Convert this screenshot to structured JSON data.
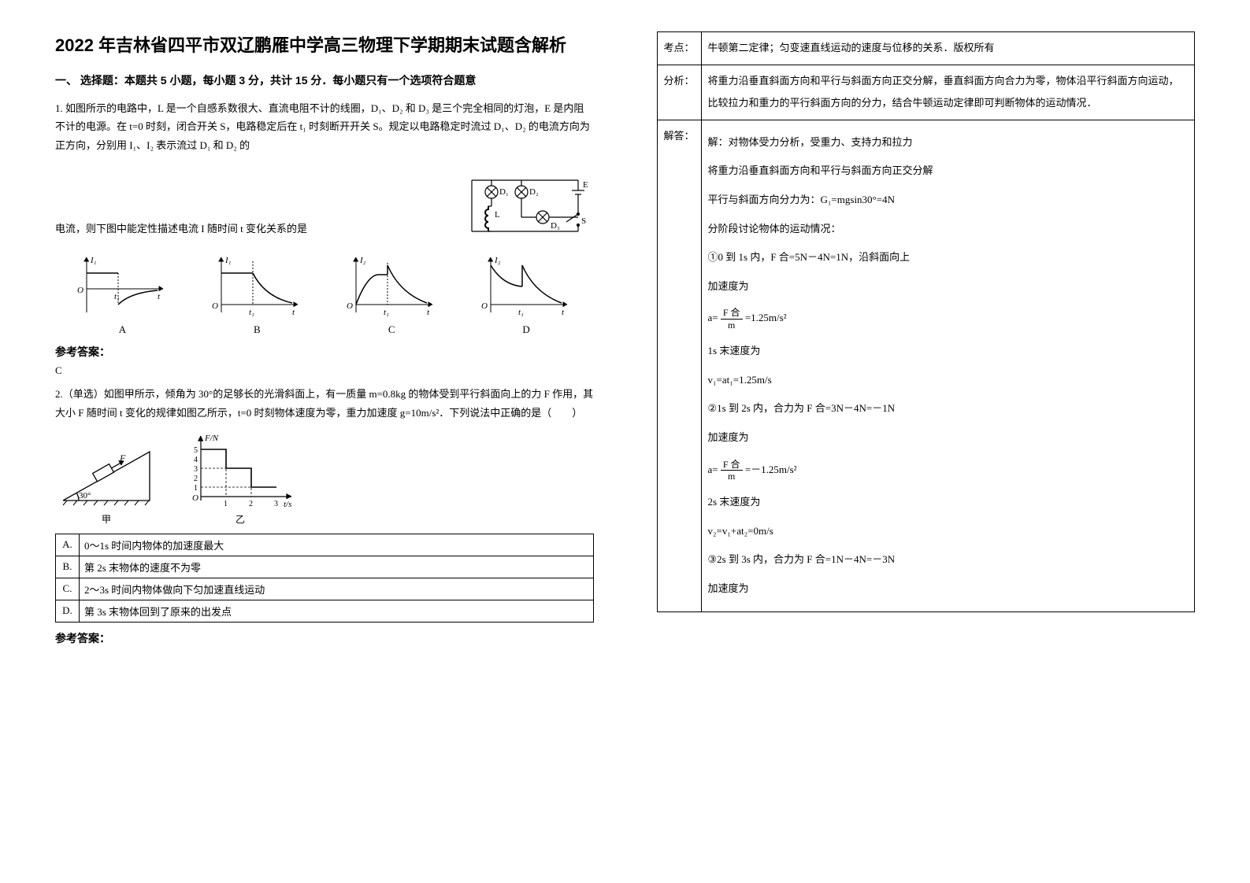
{
  "title": "2022 年吉林省四平市双辽鹏雁中学高三物理下学期期末试题含解析",
  "section1_header": "一、 选择题：本题共 5 小题，每小题 3 分，共计 15 分．每小题只有一个选项符合题意",
  "q1": {
    "text_part1": "1. 如图所示的电路中，L 是一个自感系数很大、直流电阻不计的线圈，D₁、D₂ 和 D₃ 是三个完全相同的灯泡，E 是内阻不计的电源。在 t=0 时刻，闭合开关 S，电路稳定后在 t₁ 时刻断开开关 S。规定以电路稳定时流过 D₁、D₂ 的电流方向为正方向，分别用 I₁、I₂ 表示流过 D₁ 和 D₂ 的",
    "text_part2": "电流，则下图中能定性描述电流 I 随时间 t 变化关系的是",
    "circuit": {
      "labels": {
        "D1": "D₁",
        "D2": "D₂",
        "D3": "D₃",
        "L": "L",
        "E": "E",
        "S": "S"
      },
      "colors": {
        "wire": "#000000",
        "bulb_fill": "#ffffff"
      }
    },
    "choice_graphs": {
      "labels": [
        "A",
        "B",
        "C",
        "D"
      ],
      "axis_y": [
        "I₁",
        "I₁",
        "I₂",
        "I₂"
      ],
      "axis_origin": "O",
      "t1_label": "t₁",
      "t_label": "t",
      "line_color": "#000000",
      "curves": {
        "A": {
          "seg1": "flat_pos",
          "after_t1": "neg_decay_flip"
        },
        "B": {
          "seg1": "flat_pos",
          "after_t1": "pos_decay"
        },
        "C": {
          "seg1": "rise_then_flat",
          "after_t1": "pos_decay"
        },
        "D": {
          "seg1": "decay_to_flat",
          "after_t1": "pos_decay"
        }
      }
    },
    "answer_label": "参考答案：",
    "answer": "C"
  },
  "q2": {
    "text": "2.（单选）如图甲所示，倾角为 30°的足够长的光滑斜面上，有一质量 m=0.8kg 的物体受到平行斜面向上的力 F 作用，其大小 F 随时间 t 变化的规律如图乙所示，t=0 时刻物体速度为零，重力加速度 g=10m/s²．下列说法中正确的是（　　）",
    "figure_a_caption": "甲",
    "figure_b_caption": "乙",
    "incline": {
      "angle_label": "30°",
      "F_label": "F",
      "color": "#000000",
      "fill": "#ffffff"
    },
    "graph": {
      "y_label": "F/N",
      "x_label": "t/s",
      "origin": "O",
      "xlim": [
        0,
        3.3
      ],
      "ylim": [
        0,
        5.5
      ],
      "xticks": [
        1,
        2,
        3
      ],
      "yticks": [
        1,
        2,
        3,
        4,
        5
      ],
      "steps": [
        {
          "t_from": 0,
          "t_to": 1,
          "F": 5
        },
        {
          "t_from": 1,
          "t_to": 2,
          "F": 3
        },
        {
          "t_from": 2,
          "t_to": 3,
          "F": 1
        }
      ],
      "line_color": "#000000",
      "grid_color": "#000000",
      "dash": "3,2"
    },
    "options": [
      {
        "key": "A.",
        "text": "0～1s 时间内物体的加速度最大"
      },
      {
        "key": "B.",
        "text": "第 2s 末物体的速度不为零"
      },
      {
        "key": "C.",
        "text": "2～3s 时间内物体做向下匀加速直线运动"
      },
      {
        "key": "D.",
        "text": "第 3s 末物体回到了原来的出发点"
      }
    ],
    "answer_label": "参考答案："
  },
  "solution": {
    "rows": [
      {
        "label": "考点：",
        "body_plain": "牛顿第二定律；匀变速直线运动的速度与位移的关系．版权所有"
      },
      {
        "label": "分析：",
        "body_plain": "将重力沿垂直斜面方向和平行与斜面方向正交分解，垂直斜面方向合力为零，物体沿平行斜面方向运动，比较拉力和重力的平行斜面方向的分力，结合牛顿运动定律即可判断物体的运动情况．"
      },
      {
        "label": "解答：",
        "body_parts": [
          "解：对物体受力分析，受重力、支持力和拉力",
          "将重力沿垂直斜面方向和平行与斜面方向正交分解",
          "平行与斜面方向分力为：G₁=mgsin30°=4N",
          "分阶段讨论物体的运动情况：",
          "①0 到 1s 内，F 合=5N－4N=1N，沿斜面向上",
          "加速度为",
          {
            "type": "frac_eq",
            "prefix": "a=",
            "num": "F 合",
            "den": "m",
            "suffix": " =1.25m/s²"
          },
          "1s 末速度为",
          "v₁=at₁=1.25m/s",
          "②1s 到 2s 内，合力为 F 合=3N－4N=－1N",
          "加速度为",
          {
            "type": "frac_eq",
            "prefix": "a=",
            "num": "F 合",
            "den": "m",
            "suffix": " =－1.25m/s²"
          },
          "2s 末速度为",
          "v₂=v₁+at₂=0m/s",
          "③2s 到 3s 内，合力为 F 合=1N－4N=－3N",
          "加速度为"
        ]
      }
    ]
  }
}
